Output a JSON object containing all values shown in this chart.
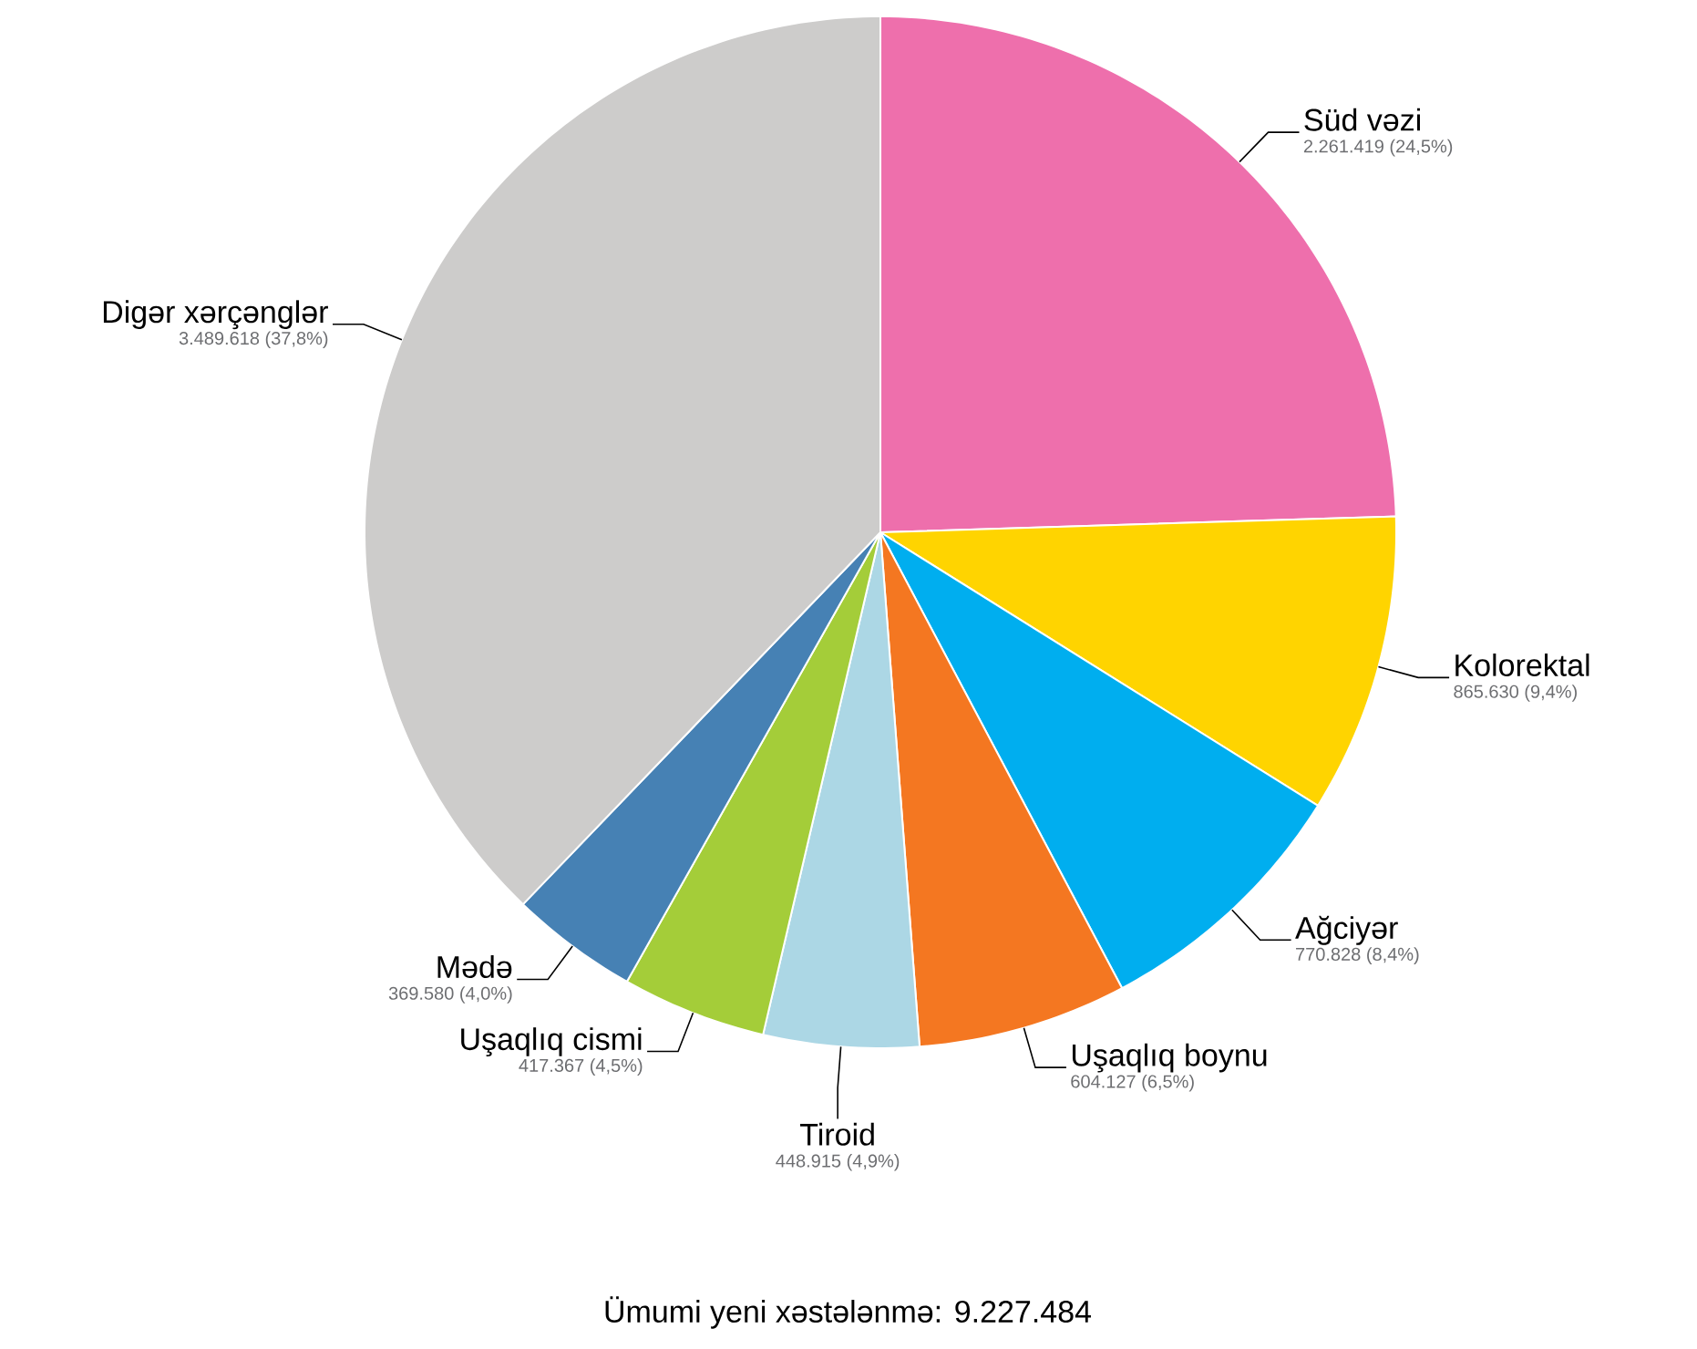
{
  "chart_data": {
    "type": "pie",
    "categories": [
      "Süd vəzi",
      "Kolorektal",
      "Ağciyər",
      "Uşaqlıq boynu",
      "Tiroid",
      "Uşaqlıq cismi",
      "Mədə",
      "Digər xərçənglər"
    ],
    "values": [
      2261419,
      865630,
      770828,
      604127,
      448915,
      417367,
      369580,
      3489618
    ],
    "value_labels": [
      "2.261.419 (24,5%)",
      "865.630 (9,4%)",
      "770.828 (8,4%)",
      "604.127 (6,5%)",
      "448.915 (4,9%)",
      "417.367 (4,5%)",
      "369.580 (4,0%)",
      "3.489.618 (37,8%)"
    ],
    "colors": [
      "#ee6fac",
      "#ffd400",
      "#00aeef",
      "#f47721",
      "#acd7e5",
      "#a4cd39",
      "#4681b4",
      "#cdcccb"
    ],
    "annotations": [
      "Ümumi yeni xəstələnmə: 9.227.484"
    ]
  }
}
